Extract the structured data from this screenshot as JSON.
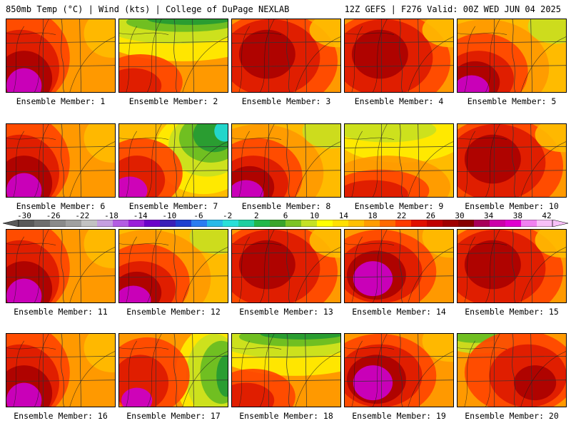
{
  "header": {
    "left": "850mb Temp (°C) | Wind (kts) | College of DuPage NEXLAB",
    "right": "12Z GEFS | F276 Valid: 00Z WED JUN 04 2025"
  },
  "caption_prefix": "Ensemble Member:",
  "members": [
    {
      "number": "1",
      "caption": "Ensemble Member: 1",
      "pattern": "hot-west"
    },
    {
      "number": "2",
      "caption": "Ensemble Member: 2",
      "pattern": "cool-north"
    },
    {
      "number": "3",
      "caption": "Ensemble Member: 3",
      "pattern": "warm-red"
    },
    {
      "number": "4",
      "caption": "Ensemble Member: 4",
      "pattern": "warm-red"
    },
    {
      "number": "5",
      "caption": "Ensemble Member: 5",
      "pattern": "hot-sw"
    },
    {
      "number": "6",
      "caption": "Ensemble Member: 6",
      "pattern": "hot-west"
    },
    {
      "number": "7",
      "caption": "Ensemble Member: 7",
      "pattern": "cool-ne"
    },
    {
      "number": "8",
      "caption": "Ensemble Member: 8",
      "pattern": "hot-sw"
    },
    {
      "number": "9",
      "caption": "Ensemble Member: 9",
      "pattern": "warm-yellow"
    },
    {
      "number": "10",
      "caption": "Ensemble Member: 10",
      "pattern": "warm-red"
    },
    {
      "number": "11",
      "caption": "Ensemble Member: 11",
      "pattern": "hot-west"
    },
    {
      "number": "12",
      "caption": "Ensemble Member: 12",
      "pattern": "hot-sw"
    },
    {
      "number": "13",
      "caption": "Ensemble Member: 13",
      "pattern": "warm-red"
    },
    {
      "number": "14",
      "caption": "Ensemble Member: 14",
      "pattern": "hot-center"
    },
    {
      "number": "15",
      "caption": "Ensemble Member: 15",
      "pattern": "warm-red"
    },
    {
      "number": "16",
      "caption": "Ensemble Member: 16",
      "pattern": "hot-west"
    },
    {
      "number": "17",
      "caption": "Ensemble Member: 17",
      "pattern": "cool-east"
    },
    {
      "number": "18",
      "caption": "Ensemble Member: 18",
      "pattern": "cool-north"
    },
    {
      "number": "19",
      "caption": "Ensemble Member: 19",
      "pattern": "hot-center"
    },
    {
      "number": "20",
      "caption": "Ensemble Member: 20",
      "pattern": "cool-nw"
    }
  ],
  "colorscale": {
    "labels": [
      "-30",
      "-26",
      "-22",
      "-18",
      "-14",
      "-10",
      "-6",
      "-2",
      "2",
      "6",
      "10",
      "14",
      "18",
      "22",
      "26",
      "30",
      "34",
      "38",
      "42"
    ],
    "colors": [
      "#595959",
      "#6e6e6e",
      "#8a8a8a",
      "#a0a0a0",
      "#c2c2c2",
      "#c59fe0",
      "#b35ce3",
      "#9b1fd9",
      "#6b00c9",
      "#3a1fb8",
      "#1f3fd0",
      "#2a7cf0",
      "#27b9e8",
      "#28e0d8",
      "#1fd0a0",
      "#22b84a",
      "#3aa52a",
      "#7cc424",
      "#c4e224",
      "#ffff00",
      "#ffe000",
      "#ffc000",
      "#ff9c00",
      "#ff6a00",
      "#ff3a00",
      "#e01000",
      "#c00000",
      "#a00000",
      "#860000",
      "#a8005a",
      "#cc00aa",
      "#e000d0",
      "#f080f0",
      "#f8c0f8"
    ]
  },
  "palette": {
    "magenta": "#cc00cc",
    "crimson": "#aa0000",
    "red": "#dd1a00",
    "redorange": "#ff4400",
    "orange": "#ff9900",
    "amber": "#ffbb00",
    "yellow": "#ffee00",
    "yellowgreen": "#c8e020",
    "green": "#66bb22",
    "darkgreen": "#229933",
    "teal": "#22cc99",
    "cyan": "#22dddd"
  }
}
